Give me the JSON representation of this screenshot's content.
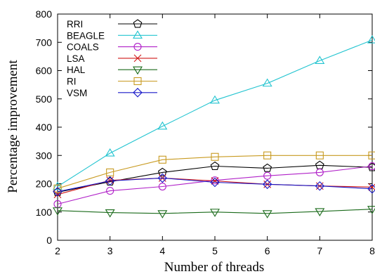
{
  "chart_data": {
    "type": "line",
    "title": "",
    "xlabel": "Number of threads",
    "ylabel": "Percentage improvement",
    "x": [
      2,
      3,
      4,
      5,
      6,
      7,
      8
    ],
    "xlim": [
      2,
      8
    ],
    "ylim": [
      0,
      800
    ],
    "xticks": [
      "2",
      "3",
      "4",
      "5",
      "6",
      "7",
      "8"
    ],
    "yticks": [
      "0",
      "100",
      "200",
      "300",
      "400",
      "500",
      "600",
      "700",
      "800"
    ],
    "grid": false,
    "legend_position": "top-left",
    "series": [
      {
        "name": "RRI",
        "color": "#000000",
        "marker": "pentagon",
        "values": [
          170,
          207,
          240,
          262,
          255,
          265,
          258
        ]
      },
      {
        "name": "BEAGLE",
        "color": "#22c4d0",
        "marker": "triangle-up",
        "values": [
          190,
          308,
          403,
          495,
          555,
          635,
          708
        ]
      },
      {
        "name": "COALS",
        "color": "#b020c8",
        "marker": "circle",
        "values": [
          128,
          175,
          190,
          212,
          228,
          240,
          262
        ]
      },
      {
        "name": "LSA",
        "color": "#d01818",
        "marker": "x",
        "values": [
          162,
          212,
          220,
          210,
          198,
          192,
          188
        ]
      },
      {
        "name": "HAL",
        "color": "#1a6a1a",
        "marker": "triangle-down",
        "values": [
          105,
          98,
          95,
          100,
          95,
          102,
          110
        ]
      },
      {
        "name": "RI",
        "color": "#c89a20",
        "marker": "square",
        "values": [
          183,
          240,
          285,
          295,
          300,
          300,
          300
        ]
      },
      {
        "name": "VSM",
        "color": "#1818c8",
        "marker": "diamond",
        "values": [
          172,
          210,
          220,
          205,
          198,
          192,
          182
        ]
      }
    ]
  }
}
